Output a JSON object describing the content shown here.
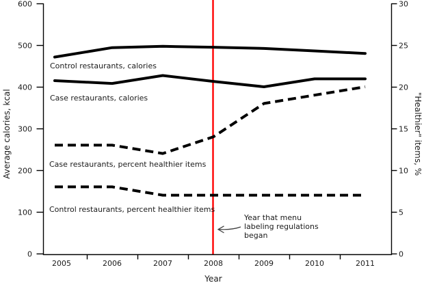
{
  "chart_data": {
    "type": "line",
    "title": "",
    "xlabel": "Year",
    "ylabel_left": "Average calories, kcal",
    "ylabel_right": "\"Healthier\" items, %",
    "years": [
      2005,
      2006,
      2007,
      2008,
      2009,
      2010,
      2011
    ],
    "ylim_left": [
      0,
      600
    ],
    "ylim_right": [
      0,
      30
    ],
    "yticks_left": [
      0,
      100,
      200,
      300,
      400,
      500,
      600
    ],
    "yticks_right": [
      0,
      5,
      10,
      15,
      20,
      25,
      30
    ],
    "grid": false,
    "legend": "inline-labels",
    "series": [
      {
        "id": "control-calories",
        "label": "Control restaurants, calories",
        "axis": "left",
        "unit": "kcal",
        "line_style": "solid",
        "color": "#000000",
        "values": [
          474,
          494,
          497,
          495,
          492,
          486,
          480
        ]
      },
      {
        "id": "case-calories",
        "label": "Case restaurants, calories",
        "axis": "left",
        "unit": "kcal",
        "line_style": "solid",
        "color": "#000000",
        "values": [
          414,
          408,
          427,
          413,
          400,
          419,
          419
        ]
      },
      {
        "id": "case-percent-healthier",
        "label": "Case restaurants, percent healthier items",
        "axis": "right",
        "unit": "%",
        "line_style": "dashed",
        "color": "#000000",
        "values": [
          13,
          13,
          12,
          14,
          18,
          19,
          20
        ]
      },
      {
        "id": "control-percent-healthier",
        "label": "Control restaurants, percent healthier items",
        "axis": "right",
        "unit": "%",
        "line_style": "dashed",
        "color": "#000000",
        "values": [
          8,
          8,
          7,
          7,
          7,
          7,
          7
        ]
      }
    ],
    "reference_line": {
      "x_year": 2008,
      "color": "#ff0000",
      "annotation_lines": [
        "Year that menu",
        "labeling regulations",
        "began"
      ]
    },
    "colors": {
      "line": "#000000",
      "text": "#1a1a1a",
      "reference": "#ff0000",
      "background": "#ffffff"
    }
  }
}
